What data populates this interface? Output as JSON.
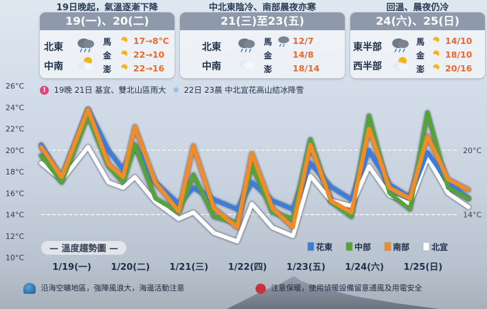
{
  "headers": [
    "19日晚起，氣溫逐漸下降",
    "中北東陰冷、南部晨夜亦寒",
    "回溫、晨夜仍冷"
  ],
  "panels": [
    {
      "title": "19(一)、20(二)",
      "regions": [
        {
          "name": "北東",
          "icon": "rain-cloud-icon"
        },
        {
          "name": "中南",
          "icon": "sun-cloud-icon"
        }
      ],
      "islands": [
        {
          "name": "馬",
          "temp": "17→8°C",
          "icon": "sun-cloud-icon"
        },
        {
          "name": "金",
          "temp": "22→10",
          "icon": "sun-cloud-icon"
        },
        {
          "name": "澎",
          "temp": "22→16",
          "icon": "sun-cloud-icon"
        }
      ]
    },
    {
      "title": "21(三)至23(五)",
      "regions": [
        {
          "name": "北東",
          "icon": "rain-cloud-icon"
        },
        {
          "name": "中南",
          "icon": "cloud-icon"
        }
      ],
      "islands": [
        {
          "name": "馬",
          "temp": "12/7",
          "icon": "rain-cloud-icon"
        },
        {
          "name": "金",
          "temp": "14/8",
          "icon": "cloud-icon"
        },
        {
          "name": "澎",
          "temp": "18/14",
          "icon": "cloud-icon"
        }
      ]
    },
    {
      "title": "24(六)、25(日)",
      "regions": [
        {
          "name": "東半部",
          "icon": "rain-cloud-icon"
        },
        {
          "name": "西半部",
          "icon": "sun-cloud-icon"
        }
      ],
      "islands": [
        {
          "name": "馬",
          "temp": "14/10",
          "icon": "sun-cloud-icon"
        },
        {
          "name": "金",
          "temp": "18/10",
          "icon": "sun-cloud-icon"
        },
        {
          "name": "澎",
          "temp": "20/16",
          "icon": "sun-cloud-icon"
        }
      ]
    }
  ],
  "notice": {
    "rain_text": "19晚 21日 基宜、雙北山區雨大",
    "snow_text": "22日 23晨 中北宜花高山結冰降雪"
  },
  "footer": {
    "marine_text": "沿海空曠地區，強陣風浪大，海邊活動注意",
    "warm_text": "注意保暖，使用偵暖設備留意通風及用電安全"
  },
  "chart_data": {
    "type": "line",
    "title": "溫度趨勢圖",
    "ylim": [
      10,
      26
    ],
    "y_ticks": [
      "10°C",
      "12°C",
      "14°C",
      "16°C",
      "18°C",
      "20°C",
      "22°C",
      "24°C",
      "26°C"
    ],
    "x_labels": [
      "1/19(一)",
      "1/20(二)",
      "1/21(三)",
      "1/22(四)",
      "1/23(五)",
      "1/24(六)",
      "1/25(日)"
    ],
    "reference_lines": [
      {
        "value": 20,
        "label": "20°C"
      },
      {
        "value": 14,
        "label": "14°C"
      }
    ],
    "legend_position": "bottom-right",
    "colors": {
      "花東": "#3b7ddd",
      "中部": "#55a33a",
      "南部": "#f28c28",
      "北宜": "#ffffff"
    },
    "x_note": "x values are in days after 1/19 00:00",
    "series": [
      {
        "name": "花東",
        "points": [
          [
            0,
            20.5
          ],
          [
            0.35,
            17.3
          ],
          [
            0.8,
            23.8
          ],
          [
            1.15,
            20
          ],
          [
            1.4,
            18.2
          ],
          [
            1.6,
            20.4
          ],
          [
            1.95,
            17
          ],
          [
            2.35,
            15
          ],
          [
            2.6,
            16.5
          ],
          [
            2.95,
            15.4
          ],
          [
            3.35,
            14.5
          ],
          [
            3.6,
            17
          ],
          [
            3.95,
            15.3
          ],
          [
            4.3,
            14.5
          ],
          [
            4.6,
            18.8
          ],
          [
            4.95,
            16.6
          ],
          [
            5.3,
            15.4
          ],
          [
            5.6,
            20
          ],
          [
            5.95,
            16.8
          ],
          [
            6.3,
            15.6
          ],
          [
            6.6,
            19.8
          ],
          [
            6.95,
            17
          ],
          [
            7.3,
            15.5
          ]
        ]
      },
      {
        "name": "中部",
        "points": [
          [
            0,
            19.5
          ],
          [
            0.35,
            17
          ],
          [
            0.8,
            23.2
          ],
          [
            1.15,
            18.5
          ],
          [
            1.4,
            17
          ],
          [
            1.6,
            20.5
          ],
          [
            1.95,
            15.5
          ],
          [
            2.35,
            14.2
          ],
          [
            2.6,
            17.7
          ],
          [
            2.95,
            13.8
          ],
          [
            3.35,
            13.2
          ],
          [
            3.6,
            18.6
          ],
          [
            3.95,
            14.2
          ],
          [
            4.3,
            13.6
          ],
          [
            4.6,
            21
          ],
          [
            4.95,
            15.2
          ],
          [
            5.3,
            13.8
          ],
          [
            5.6,
            23.2
          ],
          [
            5.95,
            16
          ],
          [
            6.3,
            14.5
          ],
          [
            6.6,
            23.5
          ],
          [
            6.95,
            16.5
          ],
          [
            7.3,
            15.5
          ]
        ]
      },
      {
        "name": "南部",
        "points": [
          [
            0,
            20.3
          ],
          [
            0.35,
            17.5
          ],
          [
            0.8,
            23.8
          ],
          [
            1.15,
            18.7
          ],
          [
            1.4,
            17.5
          ],
          [
            1.6,
            22.2
          ],
          [
            1.95,
            17
          ],
          [
            2.35,
            14.3
          ],
          [
            2.6,
            20.4
          ],
          [
            2.95,
            14.6
          ],
          [
            3.35,
            12.8
          ],
          [
            3.6,
            19.7
          ],
          [
            3.95,
            14.6
          ],
          [
            4.3,
            12.8
          ],
          [
            4.6,
            20.5
          ],
          [
            4.95,
            15.3
          ],
          [
            5.3,
            14.2
          ],
          [
            5.6,
            22
          ],
          [
            5.95,
            16.5
          ],
          [
            6.3,
            15.5
          ],
          [
            6.6,
            21.3
          ],
          [
            6.95,
            17.3
          ],
          [
            7.3,
            16.3
          ]
        ]
      },
      {
        "name": "北宜",
        "points": [
          [
            0,
            18.8
          ],
          [
            0.35,
            17.2
          ],
          [
            0.8,
            20.3
          ],
          [
            1.15,
            17
          ],
          [
            1.4,
            16.5
          ],
          [
            1.6,
            17.5
          ],
          [
            1.95,
            15.2
          ],
          [
            2.35,
            13.6
          ],
          [
            2.6,
            14.2
          ],
          [
            2.95,
            12.3
          ],
          [
            3.35,
            11.5
          ],
          [
            3.6,
            15
          ],
          [
            3.95,
            12.8
          ],
          [
            4.3,
            12
          ],
          [
            4.6,
            17.6
          ],
          [
            4.95,
            15.3
          ],
          [
            5.3,
            14.8
          ],
          [
            5.6,
            18.5
          ],
          [
            5.95,
            15.8
          ],
          [
            6.3,
            15
          ],
          [
            6.6,
            19.3
          ],
          [
            6.95,
            16
          ],
          [
            7.3,
            14.7
          ]
        ]
      }
    ]
  }
}
